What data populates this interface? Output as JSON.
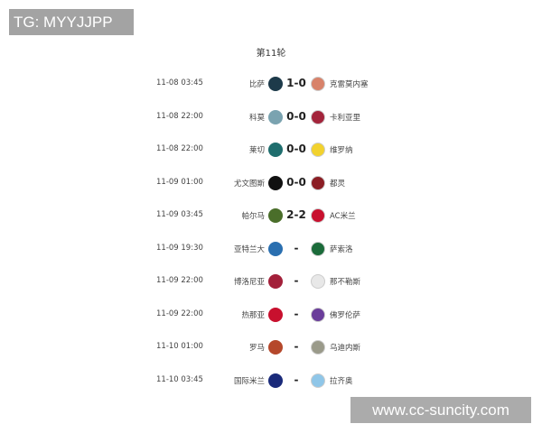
{
  "watermark_top": "TG: MYYJJPP",
  "watermark_bottom": "www.cc-suncity.com",
  "round_title": "第11轮",
  "matches": [
    {
      "date": "11-08 03:45",
      "home": "比萨",
      "score": "1-0",
      "away": "克雷莫内塞",
      "home_color": "#1d3a4a",
      "away_color": "#d8826a"
    },
    {
      "date": "11-08 22:00",
      "home": "科莫",
      "score": "0-0",
      "away": "卡利亚里",
      "home_color": "#7aa3b0",
      "away_color": "#a3243b"
    },
    {
      "date": "11-08 22:00",
      "home": "莱切",
      "score": "0-0",
      "away": "维罗纳",
      "home_color": "#1f6e6e",
      "away_color": "#f2d22e"
    },
    {
      "date": "11-09 01:00",
      "home": "尤文图斯",
      "score": "0-0",
      "away": "都灵",
      "home_color": "#111111",
      "away_color": "#8b1e24"
    },
    {
      "date": "11-09 03:45",
      "home": "帕尔马",
      "score": "2-2",
      "away": "AC米兰",
      "home_color": "#4a6e2a",
      "away_color": "#c8102e"
    },
    {
      "date": "11-09 19:30",
      "home": "亚特兰大",
      "score": "-",
      "away": "萨索洛",
      "home_color": "#2a6fb0",
      "away_color": "#1b6b3a"
    },
    {
      "date": "11-09 22:00",
      "home": "博洛尼亚",
      "score": "-",
      "away": "那不勒斯",
      "home_color": "#a3203a",
      "away_color": "#e8e8e8"
    },
    {
      "date": "11-09 22:00",
      "home": "热那亚",
      "score": "-",
      "away": "佛罗伦萨",
      "home_color": "#c8102e",
      "away_color": "#6a3d9a"
    },
    {
      "date": "11-10 01:00",
      "home": "罗马",
      "score": "-",
      "away": "乌迪内斯",
      "home_color": "#b5482b",
      "away_color": "#9a9a8a"
    },
    {
      "date": "11-10 03:45",
      "home": "国际米兰",
      "score": "-",
      "away": "拉齐奥",
      "home_color": "#1a2a7a",
      "away_color": "#8fc6e8"
    }
  ]
}
